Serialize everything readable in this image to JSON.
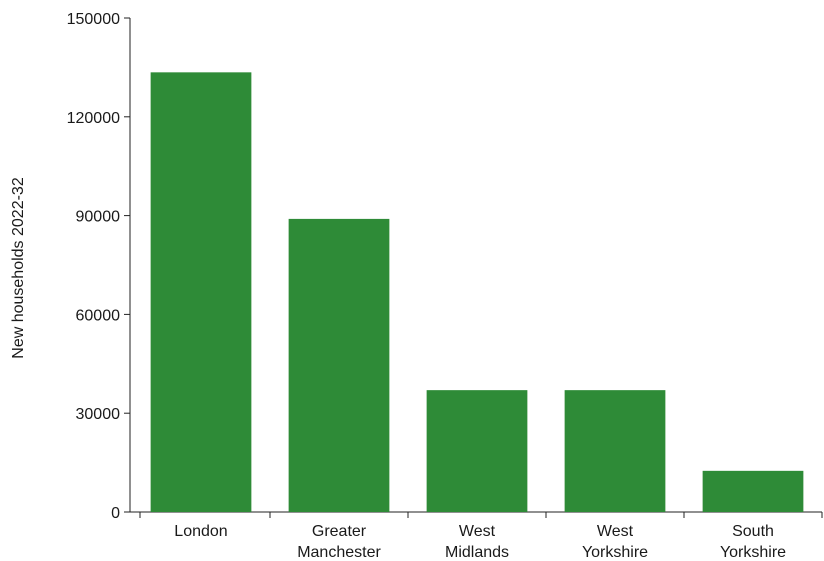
{
  "chart_data": {
    "type": "bar",
    "title": "",
    "xlabel": "",
    "ylabel": "New households 2022-32",
    "categories": [
      [
        "London"
      ],
      [
        "Greater",
        "Manchester"
      ],
      [
        "West",
        "Midlands"
      ],
      [
        "West",
        "Yorkshire"
      ],
      [
        "South",
        "Yorkshire"
      ]
    ],
    "values": [
      133500,
      89000,
      37000,
      37000,
      12500
    ],
    "ylim": [
      0,
      150000
    ],
    "yticks": [
      "0",
      "30000",
      "60000",
      "90000",
      "120000",
      "150000"
    ],
    "grid": false,
    "legend": "none",
    "colors": {
      "bar": "#2e8b37",
      "axis": "#222222",
      "text": "#1a1a1a"
    }
  }
}
